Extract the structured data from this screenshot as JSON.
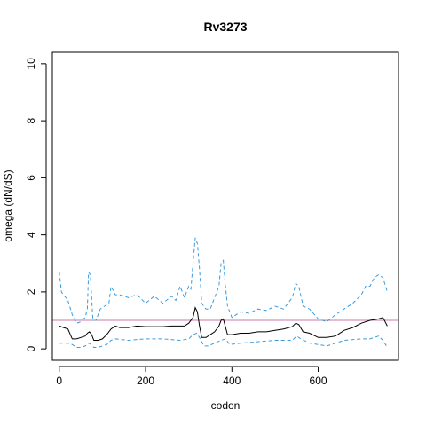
{
  "chart_data": {
    "type": "line",
    "title": "Rv3273",
    "xlabel": "codon",
    "ylabel": "omega (dN/dS)",
    "xlim": [
      -16,
      786
    ],
    "ylim": [
      -0.4,
      10.4
    ],
    "xticks": [
      0,
      200,
      400,
      600
    ],
    "yticks": [
      0,
      2,
      4,
      6,
      8,
      10
    ],
    "grid": false,
    "reference_line": {
      "y": 1,
      "color": "#cc79a7"
    },
    "series": [
      {
        "style": "solid",
        "color": "#000000",
        "x": [
          0,
          10,
          20,
          30,
          40,
          50,
          60,
          65,
          70,
          75,
          80,
          90,
          100,
          110,
          120,
          130,
          140,
          160,
          180,
          200,
          220,
          240,
          260,
          280,
          290,
          300,
          310,
          315,
          320,
          325,
          330,
          340,
          350,
          360,
          370,
          375,
          380,
          390,
          400,
          420,
          440,
          460,
          480,
          500,
          520,
          540,
          548,
          555,
          565,
          580,
          600,
          620,
          640,
          660,
          680,
          700,
          720,
          740,
          750,
          760
        ],
        "y": [
          0.8,
          0.75,
          0.7,
          0.35,
          0.35,
          0.4,
          0.45,
          0.55,
          0.6,
          0.5,
          0.3,
          0.3,
          0.35,
          0.5,
          0.7,
          0.8,
          0.75,
          0.75,
          0.8,
          0.78,
          0.78,
          0.78,
          0.8,
          0.8,
          0.8,
          0.9,
          1.1,
          1.45,
          1.3,
          0.8,
          0.4,
          0.4,
          0.5,
          0.6,
          0.8,
          1.0,
          1.05,
          0.5,
          0.5,
          0.55,
          0.55,
          0.6,
          0.6,
          0.65,
          0.7,
          0.78,
          0.9,
          0.85,
          0.6,
          0.55,
          0.4,
          0.4,
          0.45,
          0.65,
          0.75,
          0.9,
          1.0,
          1.05,
          1.1,
          0.8
        ]
      },
      {
        "style": "dashed",
        "color": "#3a9be0",
        "x": [
          0,
          5,
          10,
          20,
          30,
          40,
          50,
          60,
          65,
          68,
          72,
          78,
          85,
          95,
          105,
          115,
          120,
          125,
          130,
          140,
          160,
          180,
          200,
          220,
          240,
          260,
          270,
          280,
          290,
          300,
          305,
          310,
          315,
          320,
          325,
          330,
          340,
          350,
          360,
          370,
          375,
          380,
          385,
          390,
          400,
          420,
          440,
          460,
          480,
          500,
          520,
          540,
          548,
          555,
          565,
          580,
          600,
          620,
          640,
          660,
          680,
          700,
          710,
          720,
          730,
          740,
          750,
          760
        ],
        "y": [
          2.7,
          2.0,
          1.9,
          1.7,
          1.2,
          0.9,
          0.95,
          1.1,
          1.4,
          2.7,
          2.6,
          1.0,
          1.0,
          1.4,
          1.5,
          1.6,
          2.2,
          2.05,
          1.9,
          1.9,
          1.8,
          1.9,
          1.6,
          1.85,
          1.6,
          1.85,
          1.7,
          2.2,
          1.8,
          2.2,
          2.1,
          3.0,
          3.9,
          3.7,
          2.8,
          1.6,
          1.4,
          1.4,
          1.8,
          2.2,
          3.0,
          3.1,
          2.2,
          1.5,
          1.1,
          1.3,
          1.25,
          1.4,
          1.35,
          1.5,
          1.4,
          1.8,
          2.3,
          2.2,
          1.5,
          1.4,
          1.05,
          0.95,
          1.2,
          1.4,
          1.6,
          1.9,
          2.2,
          2.2,
          2.5,
          2.6,
          2.5,
          2.0
        ]
      },
      {
        "style": "dashed",
        "color": "#3a9be0",
        "x": [
          0,
          20,
          30,
          40,
          50,
          60,
          70,
          80,
          90,
          100,
          110,
          120,
          130,
          160,
          200,
          240,
          280,
          300,
          310,
          318,
          325,
          335,
          345,
          360,
          375,
          385,
          395,
          420,
          460,
          500,
          540,
          550,
          560,
          580,
          600,
          620,
          640,
          660,
          700,
          720,
          740,
          750,
          760
        ],
        "y": [
          0.2,
          0.2,
          0.15,
          0.05,
          0.05,
          0.1,
          0.2,
          0.05,
          0.05,
          0.1,
          0.15,
          0.3,
          0.35,
          0.3,
          0.35,
          0.35,
          0.3,
          0.35,
          0.5,
          0.55,
          0.4,
          0.1,
          0.1,
          0.2,
          0.3,
          0.35,
          0.15,
          0.2,
          0.25,
          0.3,
          0.3,
          0.45,
          0.35,
          0.2,
          0.15,
          0.1,
          0.2,
          0.3,
          0.35,
          0.35,
          0.45,
          0.3,
          0.05
        ]
      }
    ]
  }
}
